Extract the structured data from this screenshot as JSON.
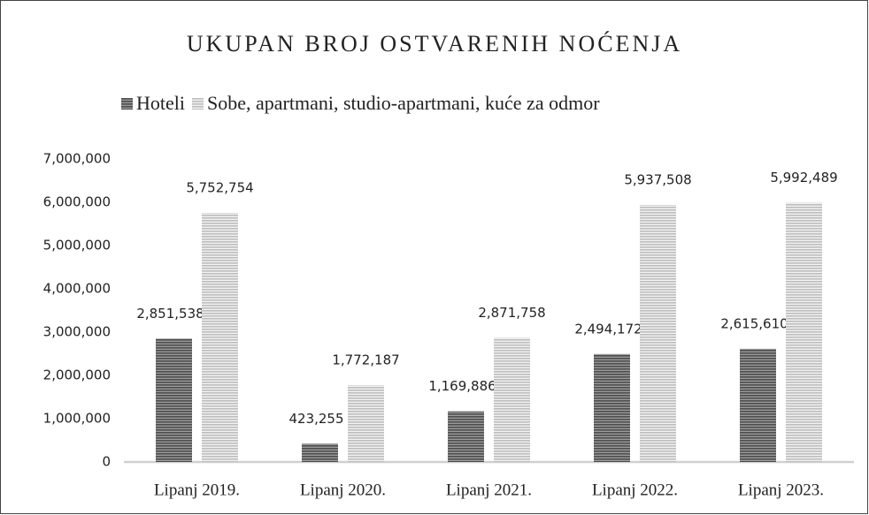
{
  "chart_data": {
    "type": "bar",
    "title": "UKUPAN BROJ OSTVARENIH NOĆENJA",
    "categories": [
      "Lipanj 2019.",
      "Lipanj 2020.",
      "Lipanj 2021.",
      "Lipanj 2022.",
      "Lipanj 2023."
    ],
    "series": [
      {
        "name": "Hoteli",
        "color": "#4d4d4d",
        "values": [
          2851538,
          423255,
          1169886,
          2494172,
          2615610
        ],
        "value_labels": [
          "2,851,538",
          "423,255",
          "1,169,886",
          "2,494,172",
          "2,615,610"
        ]
      },
      {
        "name": "Sobe, apartmani, studio-apartmani, kuće za odmor",
        "color": "#bdbdbd",
        "values": [
          5752754,
          1772187,
          2871758,
          5937508,
          5992489
        ],
        "value_labels": [
          "5,752,754",
          "1,772,187",
          "2,871,758",
          "5,937,508",
          "5,992,489"
        ]
      }
    ],
    "ylim": [
      0,
      7000000
    ],
    "yticks": [
      0,
      {
        "value": 1000000,
        "label": "1,000,000"
      },
      {
        "value": 2000000,
        "label": "2,000,000"
      },
      {
        "value": 3000000,
        "label": "3,000,000"
      },
      {
        "value": 4000000,
        "label": "4,000,000"
      },
      {
        "value": 5000000,
        "label": "5,000,000"
      },
      {
        "value": 6000000,
        "label": "6,000,000"
      },
      {
        "value": 7000000,
        "label": "7,000,000"
      }
    ],
    "grid": false,
    "legend": "top"
  }
}
